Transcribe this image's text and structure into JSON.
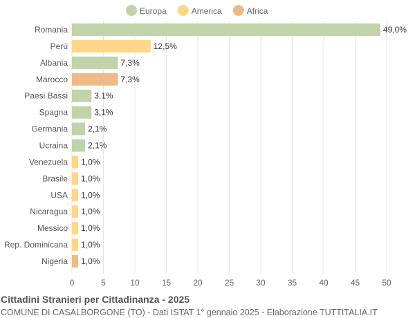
{
  "chart_data": {
    "type": "bar",
    "orientation": "horizontal",
    "title": "Cittadini Stranieri per Cittadinanza - 2025",
    "subtitle": "COMUNE DI CASALBORGONE (TO) - Dati ISTAT 1° gennaio 2025 - Elaborazione TUTTITALIA.IT",
    "xlim": [
      0,
      50
    ],
    "xticks": [
      0,
      5,
      10,
      15,
      20,
      25,
      30,
      35,
      40,
      45,
      50
    ],
    "grid": true,
    "legend_position": "top",
    "legend": [
      {
        "name": "Europa",
        "color": "#c1d3aa"
      },
      {
        "name": "America",
        "color": "#fdd789"
      },
      {
        "name": "Africa",
        "color": "#efba87"
      }
    ],
    "categories": [
      "Romania",
      "Perù",
      "Albania",
      "Marocco",
      "Paesi Bassi",
      "Spagna",
      "Germania",
      "Ucraina",
      "Venezuela",
      "Brasile",
      "USA",
      "Nicaragua",
      "Messico",
      "Rep. Dominicana",
      "Nigeria"
    ],
    "values": [
      49.0,
      12.5,
      7.3,
      7.3,
      3.1,
      3.1,
      2.1,
      2.1,
      1.0,
      1.0,
      1.0,
      1.0,
      1.0,
      1.0,
      1.0
    ],
    "labels": [
      "49,0%",
      "12,5%",
      "7,3%",
      "7,3%",
      "3,1%",
      "3,1%",
      "2,1%",
      "2,1%",
      "1,0%",
      "1,0%",
      "1,0%",
      "1,0%",
      "1,0%",
      "1,0%",
      "1,0%"
    ],
    "groups": [
      "Europa",
      "America",
      "Europa",
      "Africa",
      "Europa",
      "Europa",
      "Europa",
      "Europa",
      "America",
      "America",
      "America",
      "America",
      "America",
      "America",
      "Africa"
    ]
  }
}
